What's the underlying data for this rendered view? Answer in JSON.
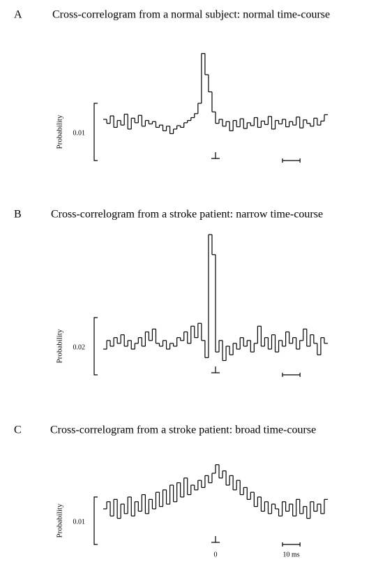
{
  "charts": [
    {
      "chart_data": {
        "type": "step",
        "panel": "A",
        "title": "Cross-correlogram from a normal subject: normal time-course",
        "ylabel": "Probability",
        "yscale": 0.01,
        "xscale": {
          "value": 10
        },
        "zero_marker": {
          "value": 0
        },
        "xlim": [
          -64,
          64
        ],
        "ylim": [
          0,
          0.02
        ],
        "color": "#000000",
        "values": [
          0.0072,
          0.0065,
          0.0078,
          0.0058,
          0.007,
          0.0062,
          0.0081,
          0.0055,
          0.0074,
          0.0066,
          0.0079,
          0.006,
          0.007,
          0.0064,
          0.0068,
          0.0058,
          0.0062,
          0.0052,
          0.006,
          0.0047,
          0.0055,
          0.0061,
          0.0058,
          0.0066,
          0.007,
          0.0075,
          0.0082,
          0.01,
          0.0187,
          0.015,
          0.012,
          0.0085,
          0.0065,
          0.0072,
          0.006,
          0.0068,
          0.0052,
          0.007,
          0.0059,
          0.0073,
          0.0056,
          0.0066,
          0.0061,
          0.0075,
          0.0058,
          0.0069,
          0.0063,
          0.0077,
          0.0055,
          0.007,
          0.0064,
          0.0072,
          0.0059,
          0.0068,
          0.0062,
          0.0076,
          0.0057,
          0.0071,
          0.0065,
          0.006,
          0.0074,
          0.0062,
          0.0069,
          0.008
        ]
      }
    },
    {
      "chart_data": {
        "type": "step",
        "panel": "B",
        "title": "Cross-correlogram from a stroke patient: narrow time-course",
        "ylabel": "Probability",
        "yscale": 0.02,
        "xscale": {
          "value": 10
        },
        "zero_marker": {
          "value": 0
        },
        "xlim": [
          -64,
          64
        ],
        "ylim": [
          0,
          0.05
        ],
        "color": "#000000",
        "values": [
          0.009,
          0.012,
          0.01,
          0.013,
          0.011,
          0.014,
          0.01,
          0.012,
          0.009,
          0.011,
          0.013,
          0.01,
          0.015,
          0.012,
          0.016,
          0.011,
          0.01,
          0.012,
          0.009,
          0.011,
          0.01,
          0.013,
          0.012,
          0.015,
          0.011,
          0.017,
          0.013,
          0.018,
          0.012,
          0.006,
          0.049,
          0.042,
          0.008,
          0.012,
          0.005,
          0.01,
          0.007,
          0.011,
          0.009,
          0.013,
          0.01,
          0.012,
          0.008,
          0.011,
          0.017,
          0.01,
          0.013,
          0.009,
          0.014,
          0.008,
          0.012,
          0.01,
          0.015,
          0.011,
          0.013,
          0.009,
          0.012,
          0.016,
          0.01,
          0.014,
          0.011,
          0.007,
          0.013,
          0.011
        ]
      }
    },
    {
      "chart_data": {
        "type": "step",
        "panel": "C",
        "title": "Cross-correlogram from a stroke patient: broad time-course",
        "ylabel": "Probability",
        "yscale": 0.01,
        "xscale": {
          "value": 10,
          "label": "10 ms"
        },
        "zero_marker": {
          "value": 0,
          "label": "0"
        },
        "xlim": [
          -64,
          64
        ],
        "ylim": [
          0,
          0.018
        ],
        "color": "#000000",
        "values": [
          0.0075,
          0.009,
          0.006,
          0.0095,
          0.0055,
          0.0085,
          0.0065,
          0.01,
          0.006,
          0.009,
          0.007,
          0.0105,
          0.0065,
          0.0095,
          0.0075,
          0.011,
          0.008,
          0.0115,
          0.0085,
          0.0125,
          0.009,
          0.013,
          0.01,
          0.014,
          0.0105,
          0.0125,
          0.0115,
          0.0135,
          0.012,
          0.0145,
          0.013,
          0.015,
          0.0168,
          0.014,
          0.0155,
          0.0125,
          0.0145,
          0.0115,
          0.0135,
          0.0105,
          0.012,
          0.0095,
          0.011,
          0.008,
          0.01,
          0.007,
          0.009,
          0.0065,
          0.0085,
          0.0075,
          0.006,
          0.009,
          0.007,
          0.0085,
          0.006,
          0.0095,
          0.0065,
          0.008,
          0.0055,
          0.009,
          0.007,
          0.0085,
          0.0065,
          0.0095
        ]
      }
    }
  ]
}
